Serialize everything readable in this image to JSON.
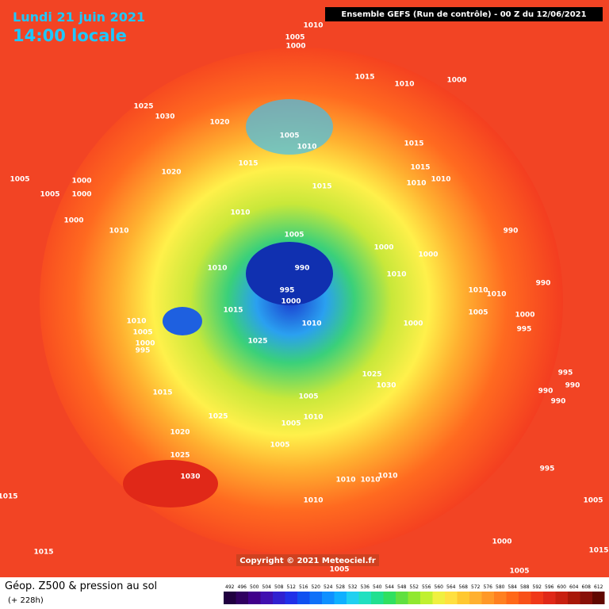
{
  "header": {
    "date": "Lundi 21 juin 2021",
    "time": "14:00 locale",
    "run": "Ensemble GEFS  (Run de contrôle)  - 00 Z du 12/06/2021"
  },
  "map": {
    "copyright": "Copyright © 2021 Meteociel.fr",
    "isobar_labels": [
      1005,
      1000,
      1010,
      1025,
      1030,
      1020,
      1015,
      1010,
      1000,
      1005,
      1010,
      1015,
      1020,
      1005,
      1005,
      1000,
      1000,
      1000,
      1010,
      1015,
      1015,
      1010,
      1010,
      1015,
      1010,
      990,
      1005,
      1000,
      1000,
      990,
      1010,
      1010,
      995,
      1000,
      1015,
      1010,
      1000,
      1010,
      1005,
      1000,
      995,
      1025,
      1030,
      1025,
      1015,
      1005,
      1010,
      1025,
      1005,
      1020,
      1005,
      1025,
      1030,
      1015,
      1010,
      1010,
      1010,
      1010,
      995,
      1005,
      1000,
      1005,
      1005,
      1015,
      1015,
      990,
      995,
      1000,
      995,
      990,
      990,
      990,
      1010,
      1010,
      1005
    ]
  },
  "footer": {
    "title": "Géop. Z500 & pression au sol",
    "lead": "(+ 228h)",
    "colorbar": [
      492,
      496,
      500,
      504,
      508,
      512,
      516,
      520,
      524,
      528,
      532,
      536,
      540,
      544,
      548,
      552,
      556,
      560,
      564,
      568,
      572,
      576,
      580,
      584,
      588,
      592,
      596,
      600,
      604,
      608,
      612
    ]
  }
}
